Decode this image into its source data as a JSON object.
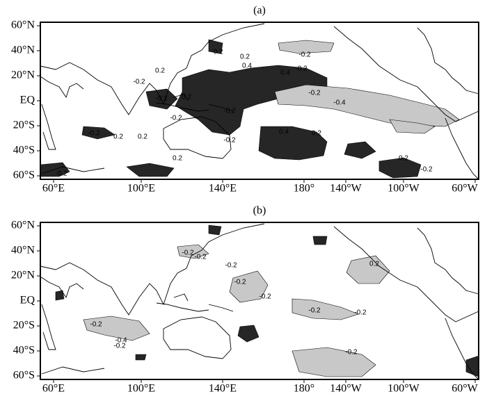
{
  "panels": [
    {
      "label": "(a)",
      "contour_labels": [
        "-0.2",
        "0.2",
        "-0.2",
        "0.4",
        "0.4",
        "-0.2",
        "0.2",
        "-0.2",
        "-0.2",
        "0.2",
        "-0.2",
        "-0.2",
        "-0.4",
        "-0.2",
        "0.4",
        "0.2",
        "-0.2",
        "0.2",
        "0.2",
        "-0.2",
        "0.2",
        "-0.2",
        "0.2",
        "-0.2"
      ]
    },
    {
      "label": "(b)",
      "contour_labels": [
        "-0.2",
        "-0.2",
        "-0.2",
        "-0.2",
        "-0.2",
        "-0.2",
        "-0.2",
        "-0.4",
        "-0.2",
        "-0.2",
        "0.2",
        "-0.2"
      ]
    }
  ],
  "y_axis_labels": [
    "60°N",
    "40°N",
    "20°N",
    "EQ",
    "20°S",
    "40°S",
    "60°S"
  ],
  "x_axis_labels": [
    "60°E",
    "100°E",
    "140°E",
    "180°",
    "140°W",
    "100°W",
    "60°W"
  ]
}
